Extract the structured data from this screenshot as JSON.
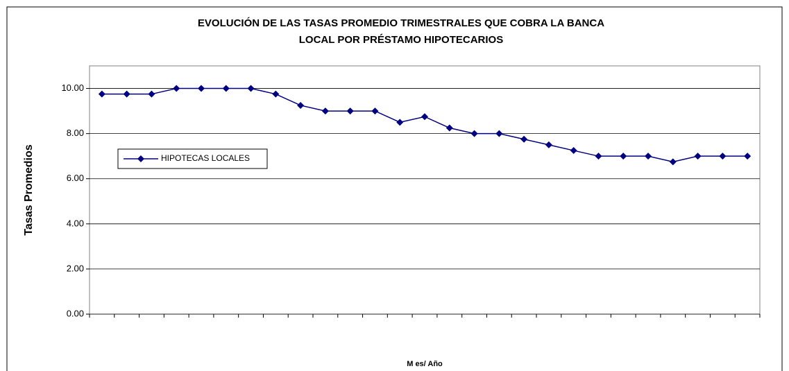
{
  "chart_data": {
    "type": "line",
    "title": [
      "EVOLUCIÓN DE LAS TASAS PROMEDIO TRIMESTRALES QUE COBRA LA BANCA",
      "LOCAL POR PRÉSTAMO HIPOTECARIOS"
    ],
    "y_label": "Tasas Promedios",
    "x_label": "M es/ Año",
    "categories": [
      null,
      null,
      null,
      null,
      null,
      null,
      null,
      null,
      null,
      null,
      null,
      null,
      null,
      null,
      null,
      null,
      null,
      null,
      null,
      null,
      null,
      null,
      null,
      null,
      null,
      null,
      null
    ],
    "series": [
      {
        "name": "HIPOTECAS LOCALES",
        "color": "#000080",
        "values": [
          9.75,
          9.75,
          9.75,
          10,
          10,
          10,
          10,
          9.75,
          9.25,
          9,
          9,
          9,
          8.5,
          8.75,
          8.25,
          8,
          8,
          7.75,
          7.5,
          7.25,
          7,
          7,
          7,
          6.75,
          7,
          7,
          7
        ]
      }
    ],
    "ylim": [
      0,
      11
    ],
    "yticks": [
      {
        "value": 0,
        "label": "0.00"
      },
      {
        "value": 2,
        "label": "2.00"
      },
      {
        "value": 4,
        "label": "4.00"
      },
      {
        "value": 6,
        "label": "6.00"
      },
      {
        "value": 8,
        "label": "8.00"
      },
      {
        "value": 10,
        "label": "10.00"
      }
    ],
    "grid": true,
    "legend": "left"
  }
}
